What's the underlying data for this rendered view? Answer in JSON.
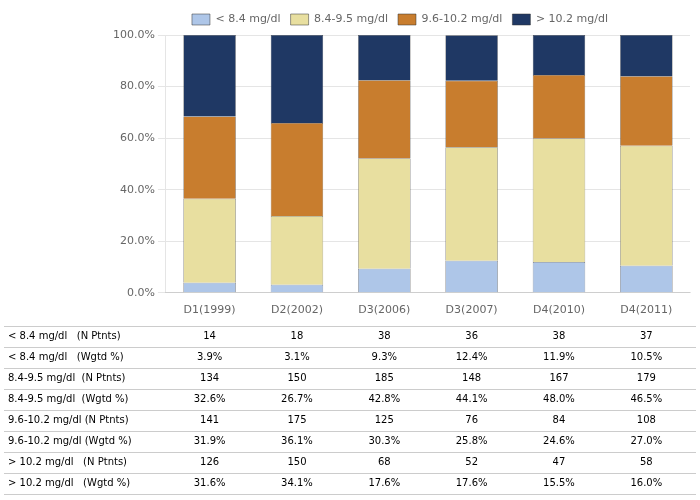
{
  "chart_data": {
    "type": "bar",
    "stacked": true,
    "categories": [
      "D1(1999)",
      "D2(2002)",
      "D3(2006)",
      "D3(2007)",
      "D4(2010)",
      "D4(2011)"
    ],
    "series": [
      {
        "name": "< 8.4 mg/dl",
        "color": "#aec6e8",
        "values": [
          3.9,
          3.1,
          9.3,
          12.4,
          11.9,
          10.5
        ]
      },
      {
        "name": "8.4-9.5 mg/dl",
        "color": "#e8dfa0",
        "values": [
          32.6,
          26.7,
          42.8,
          44.1,
          48.0,
          46.5
        ]
      },
      {
        "name": "9.6-10.2 mg/dl",
        "color": "#c87d2e",
        "values": [
          31.9,
          36.1,
          30.3,
          25.8,
          24.6,
          27.0
        ]
      },
      {
        "name": "> 10.2 mg/dl",
        "color": "#1f3864",
        "values": [
          31.6,
          34.1,
          17.6,
          17.6,
          15.5,
          16.0
        ]
      }
    ],
    "ylim": [
      0,
      100
    ],
    "yticks": [
      {
        "value": 0,
        "label": "0.0%"
      },
      {
        "value": 20,
        "label": "20.0%"
      },
      {
        "value": 40,
        "label": "40.0%"
      },
      {
        "value": 60,
        "label": "60.0%"
      },
      {
        "value": 80,
        "label": "80.0%"
      },
      {
        "value": 100,
        "label": "100.0%"
      }
    ],
    "grid": "y",
    "legend": "top",
    "table": {
      "row_labels": [
        "< 8.4 mg/dl   (N Ptnts)",
        "< 8.4 mg/dl   (Wgtd %)",
        "8.4-9.5 mg/dl  (N Ptnts)",
        "8.4-9.5 mg/dl  (Wgtd %)",
        "9.6-10.2 mg/dl (N Ptnts)",
        "9.6-10.2 mg/dl (Wgtd %)",
        "> 10.2 mg/dl   (N Ptnts)",
        "> 10.2 mg/dl   (Wgtd %)"
      ],
      "rows": [
        [
          "14",
          "18",
          "38",
          "36",
          "38",
          "37"
        ],
        [
          "3.9%",
          "3.1%",
          "9.3%",
          "12.4%",
          "11.9%",
          "10.5%"
        ],
        [
          "134",
          "150",
          "185",
          "148",
          "167",
          "179"
        ],
        [
          "32.6%",
          "26.7%",
          "42.8%",
          "44.1%",
          "48.0%",
          "46.5%"
        ],
        [
          "141",
          "175",
          "125",
          "76",
          "84",
          "108"
        ],
        [
          "31.9%",
          "36.1%",
          "30.3%",
          "25.8%",
          "24.6%",
          "27.0%"
        ],
        [
          "126",
          "150",
          "68",
          "52",
          "47",
          "58"
        ],
        [
          "31.6%",
          "34.1%",
          "17.6%",
          "17.6%",
          "15.5%",
          "16.0%"
        ]
      ]
    }
  }
}
